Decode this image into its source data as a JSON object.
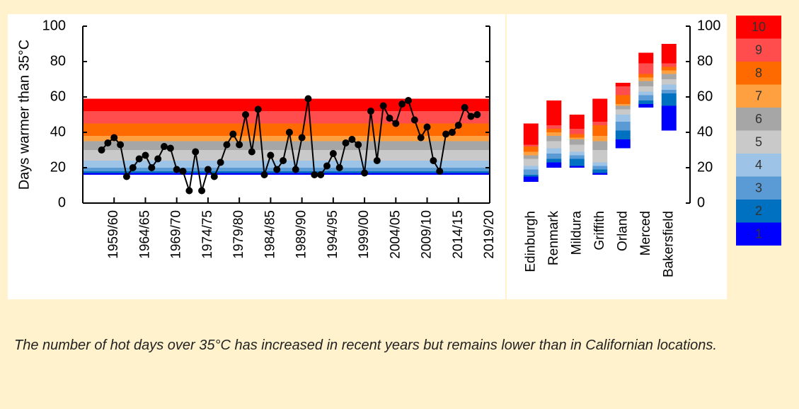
{
  "chart_data": [
    {
      "type": "line",
      "ylabel": "Days warmer than 35°C",
      "color": "#000000",
      "x": [
        1957,
        1958,
        1959,
        1960,
        1961,
        1962,
        1963,
        1964,
        1965,
        1966,
        1967,
        1968,
        1969,
        1970,
        1971,
        1972,
        1973,
        1974,
        1975,
        1976,
        1977,
        1978,
        1979,
        1980,
        1981,
        1982,
        1983,
        1984,
        1985,
        1986,
        1987,
        1988,
        1989,
        1990,
        1991,
        1992,
        1993,
        1994,
        1995,
        1996,
        1997,
        1998,
        1999,
        2000,
        2001,
        2002,
        2003,
        2004,
        2005,
        2006,
        2007,
        2008,
        2009,
        2010,
        2011,
        2012,
        2013,
        2014,
        2015,
        2016,
        2017
      ],
      "values": [
        30,
        34,
        37,
        33,
        15,
        20,
        25,
        27,
        20,
        25,
        32,
        31,
        19,
        18,
        7,
        29,
        7,
        19,
        15,
        23,
        33,
        39,
        33,
        50,
        29,
        53,
        16,
        27,
        19,
        24,
        40,
        19,
        37,
        59,
        16,
        16,
        21,
        28,
        20,
        34,
        36,
        33,
        17,
        52,
        24,
        55,
        48,
        45,
        56,
        58,
        47,
        37,
        43,
        24,
        18,
        39,
        40,
        44,
        54,
        49,
        50
      ],
      "xlim": [
        1954,
        2019
      ],
      "xticks": [
        {
          "value": 1959,
          "label": "1959/60"
        },
        {
          "value": 1964,
          "label": "1964/65"
        },
        {
          "value": 1969,
          "label": "1969/70"
        },
        {
          "value": 1974,
          "label": "1974/75"
        },
        {
          "value": 1979,
          "label": "1979/80"
        },
        {
          "value": 1984,
          "label": "1984/85"
        },
        {
          "value": 1989,
          "label": "1989/90"
        },
        {
          "value": 1994,
          "label": "1994/95"
        },
        {
          "value": 1999,
          "label": "1999/00"
        },
        {
          "value": 2004,
          "label": "2004/05"
        },
        {
          "value": 2009,
          "label": "2009/10"
        },
        {
          "value": 2014,
          "label": "2014/15"
        },
        {
          "value": 2019,
          "label": "2019/20"
        }
      ],
      "ylim": [
        0,
        100
      ],
      "yticks": [
        0,
        20,
        40,
        60,
        80,
        100
      ],
      "band_edges": [
        16,
        17,
        18,
        20,
        24,
        30,
        35,
        38,
        45,
        52,
        59
      ]
    },
    {
      "type": "bar",
      "stacked": true,
      "categories": [
        "Edinburgh",
        "Renmark",
        "Mildura",
        "Griffith",
        "Orland",
        "Merced",
        "Bakersfield"
      ],
      "base": [
        12,
        20,
        20,
        16,
        31,
        54,
        41
      ],
      "series": [
        {
          "name": "1",
          "color": "#0000ff",
          "values": [
            3,
            3,
            1,
            1,
            5,
            2,
            14
          ]
        },
        {
          "name": "2",
          "color": "#0070c0",
          "values": [
            1,
            2,
            4,
            2,
            5,
            2,
            7
          ]
        },
        {
          "name": "3",
          "color": "#5b9bd5",
          "values": [
            3,
            3,
            2,
            2,
            5,
            3,
            2
          ]
        },
        {
          "name": "4",
          "color": "#9dc3e6",
          "values": [
            2,
            3,
            2,
            2,
            4,
            2,
            3
          ]
        },
        {
          "name": "5",
          "color": "#c9c9c9",
          "values": [
            4,
            4,
            4,
            7,
            3,
            3,
            3
          ]
        },
        {
          "name": "6",
          "color": "#a6a6a6",
          "values": [
            2,
            3,
            3,
            5,
            2,
            3,
            3
          ]
        },
        {
          "name": "7",
          "color": "#ffa040",
          "values": [
            2,
            2,
            1,
            3,
            1,
            2,
            2
          ]
        },
        {
          "name": "8",
          "color": "#ff6a00",
          "values": [
            3,
            2,
            2,
            6,
            5,
            2,
            2
          ]
        },
        {
          "name": "9",
          "color": "#ff4d4d",
          "values": [
            1,
            2,
            3,
            2,
            5,
            6,
            2
          ]
        },
        {
          "name": "10",
          "color": "#ff0000",
          "values": [
            12,
            14,
            8,
            13,
            2,
            6,
            11
          ]
        }
      ],
      "ylim": [
        0,
        100
      ],
      "yticks": [
        0,
        20,
        40,
        60,
        80,
        100
      ]
    }
  ],
  "caption": "The number of hot days over 35°C has increased in recent years but remains lower than in Californian locations."
}
